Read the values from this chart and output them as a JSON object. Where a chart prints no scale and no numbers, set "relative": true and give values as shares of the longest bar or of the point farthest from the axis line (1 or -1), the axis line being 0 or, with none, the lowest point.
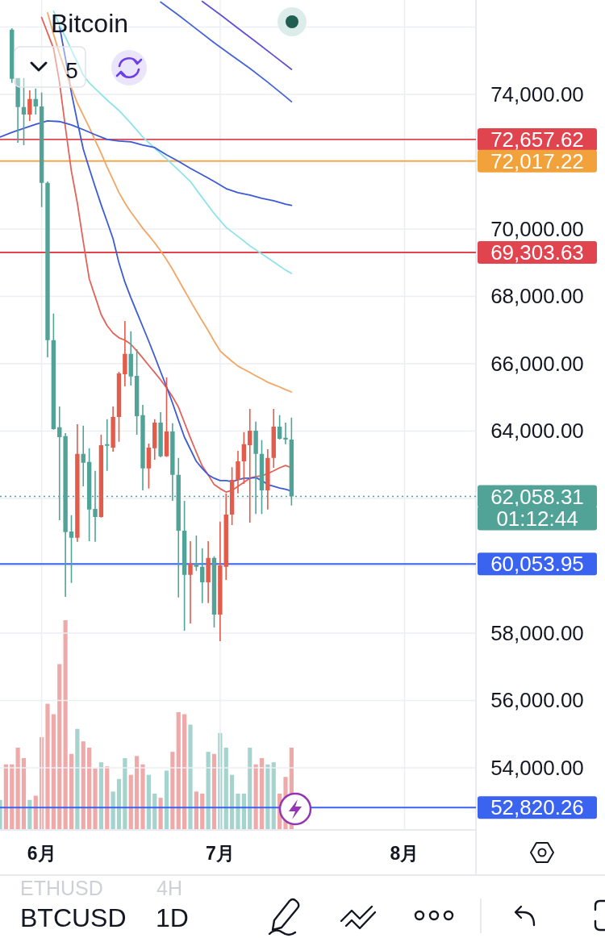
{
  "chart_data": [
    {
      "type": "candlestick",
      "title": "Bitcoin",
      "annotations": [
        "5",
        "ETHUSD",
        "4H",
        "BTCUSD",
        "1D",
        "01:12:44"
      ],
      "x": [
        "--05-27",
        "--05-28",
        "--05-29",
        "--05-30",
        "--05-31",
        "--06-01",
        "--06-02",
        "--06-03",
        "--06-04",
        "--06-05",
        "--06-06",
        "--06-07",
        "--06-08",
        "--06-09",
        "--06-10",
        "--06-11",
        "--06-12",
        "--06-13",
        "--06-14",
        "--06-15",
        "--06-16",
        "--06-17",
        "--06-18",
        "--06-19",
        "--06-20",
        "--06-21",
        "--06-22",
        "--06-23",
        "--06-24",
        "--06-25",
        "--06-26",
        "--06-27",
        "--06-28",
        "--06-29",
        "--06-30",
        "--07-01",
        "--07-02",
        "--07-03",
        "--07-04",
        "--07-05",
        "--07-06",
        "--07-07",
        "--07-08",
        "--07-09",
        "--07-10",
        "--07-11",
        "--07-12",
        "--07-13"
      ],
      "ohlc": [
        [
          75920,
          75960,
          74340,
          74460
        ],
        [
          74480,
          74480,
          72560,
          73620
        ],
        [
          73620,
          74480,
          72490,
          73400
        ],
        [
          73400,
          74120,
          73210,
          73860
        ],
        [
          73860,
          74170,
          73400,
          73640
        ],
        [
          73640,
          74050,
          70650,
          71370
        ],
        [
          71370,
          71410,
          66190,
          66700
        ],
        [
          66700,
          67490,
          64040,
          64060
        ],
        [
          64110,
          64730,
          61350,
          63820
        ],
        [
          63850,
          63940,
          59080,
          61000
        ],
        [
          61020,
          61500,
          59490,
          60830
        ],
        [
          60830,
          64200,
          60710,
          63320
        ],
        [
          63320,
          64160,
          62360,
          63060
        ],
        [
          63080,
          63490,
          60730,
          61670
        ],
        [
          61690,
          62820,
          60710,
          61450
        ],
        [
          61450,
          63890,
          61430,
          63580
        ],
        [
          63610,
          64350,
          62820,
          63560
        ],
        [
          63510,
          64730,
          63390,
          64420
        ],
        [
          64420,
          65760,
          63680,
          65710
        ],
        [
          65690,
          67270,
          65330,
          66290
        ],
        [
          66290,
          66960,
          65350,
          65620
        ],
        [
          65640,
          66430,
          63890,
          64440
        ],
        [
          64470,
          64780,
          62240,
          62890
        ],
        [
          62890,
          63630,
          62290,
          63510
        ],
        [
          63490,
          64350,
          63150,
          64250
        ],
        [
          64250,
          64560,
          63220,
          63250
        ],
        [
          63250,
          65590,
          63230,
          63990
        ],
        [
          63990,
          64230,
          61930,
          62700
        ],
        [
          62700,
          63200,
          59060,
          61040
        ],
        [
          61040,
          61930,
          58070,
          59730
        ],
        [
          59730,
          60730,
          58290,
          60060
        ],
        [
          60060,
          60900,
          59850,
          59970
        ],
        [
          59970,
          60520,
          58890,
          59510
        ],
        [
          59510,
          60730,
          58890,
          60230
        ],
        [
          60230,
          60280,
          58170,
          58550
        ],
        [
          58550,
          61310,
          57760,
          60010
        ],
        [
          59970,
          62150,
          59580,
          61520
        ],
        [
          61520,
          62930,
          61210,
          62550
        ],
        [
          62550,
          63410,
          62150,
          63100
        ],
        [
          63100,
          63970,
          62430,
          63610
        ],
        [
          63580,
          64660,
          61280,
          64010
        ],
        [
          64010,
          64280,
          61540,
          63320
        ],
        [
          63320,
          63730,
          61540,
          62240
        ],
        [
          62240,
          63460,
          61670,
          63200
        ],
        [
          63200,
          64660,
          62910,
          64130
        ],
        [
          64130,
          64470,
          63750,
          63770
        ],
        [
          63800,
          64250,
          63610,
          63750
        ],
        [
          63750,
          64400,
          61790,
          62058.31
        ]
      ],
      "colors": [
        "#52a397",
        "#52a397",
        "#52a397",
        "#e35b4b",
        "#52a397",
        "#52a397",
        "#52a397",
        "#52a397",
        "#52a397",
        "#52a397",
        "#52a397",
        "#e35b4b",
        "#52a397",
        "#52a397",
        "#52a397",
        "#e35b4b",
        "#52a397",
        "#e35b4b",
        "#e35b4b",
        "#e35b4b",
        "#52a397",
        "#52a397",
        "#52a397",
        "#e35b4b",
        "#e35b4b",
        "#52a397",
        "#e35b4b",
        "#52a397",
        "#52a397",
        "#52a397",
        "#e35b4b",
        "#52a397",
        "#52a397",
        "#e35b4b",
        "#52a397",
        "#e35b4b",
        "#e35b4b",
        "#e35b4b",
        "#e35b4b",
        "#e35b4b",
        "#e35b4b",
        "#52a397",
        "#52a397",
        "#e35b4b",
        "#e35b4b",
        "#52a397",
        "#52a397",
        "#52a397"
      ],
      "series": [
        {
          "type": "line",
          "color": "#e3625a",
          "x": [
            "--06-01",
            "--06-02",
            "--06-03",
            "--06-04",
            "--06-05",
            "--06-06",
            "--06-07",
            "--06-08",
            "--06-09",
            "--06-10",
            "--06-11",
            "--06-12",
            "--06-13",
            "--06-14",
            "--06-15",
            "--06-16",
            "--06-17",
            "--06-18",
            "--06-19",
            "--06-20",
            "--06-21",
            "--06-22",
            "--06-23",
            "--06-24",
            "--06-25",
            "--06-26",
            "--06-27",
            "--06-28",
            "--06-29",
            "--06-30",
            "--07-01",
            "--07-02",
            "--07-03",
            "--07-04",
            "--07-05",
            "--07-06",
            "--07-07",
            "--07-08",
            "--07-09",
            "--07-10",
            "--07-11",
            "--07-12",
            "--07-13"
          ],
          "values": [
            76280,
            75820,
            75360,
            74360,
            73010,
            71720,
            70770,
            69620,
            68520,
            67990,
            67460,
            67130,
            66910,
            66770,
            66700,
            66580,
            66380,
            66170,
            65950,
            65740,
            65520,
            65280,
            65020,
            64710,
            64250,
            63800,
            63370,
            62960,
            62700,
            62410,
            62290,
            62190,
            62240,
            62360,
            62480,
            62600,
            62650,
            62670,
            62740,
            62820,
            62910,
            62980,
            62910
          ]
        },
        {
          "type": "line",
          "color": "#3e5bd6",
          "x": [
            "--06-04",
            "--06-05",
            "--06-06",
            "--06-07",
            "--06-08",
            "--06-09",
            "--06-10",
            "--06-11",
            "--06-12",
            "--06-13",
            "--06-14",
            "--06-15",
            "--06-16",
            "--06-17",
            "--06-18",
            "--06-19",
            "--06-20",
            "--06-21",
            "--06-22",
            "--06-23",
            "--06-24",
            "--06-25",
            "--06-26",
            "--06-27",
            "--06-28",
            "--06-29",
            "--06-30",
            "--07-01",
            "--07-02",
            "--07-03",
            "--07-04",
            "--07-05",
            "--07-06",
            "--07-07",
            "--07-08",
            "--07-09",
            "--07-10",
            "--07-11",
            "--07-12",
            "--07-13"
          ],
          "values": [
            76020,
            75070,
            74050,
            73190,
            72370,
            71800,
            71250,
            70720,
            70220,
            69710,
            68990,
            68420,
            67960,
            67530,
            67100,
            66670,
            66220,
            65760,
            65310,
            64830,
            64320,
            63820,
            63460,
            63100,
            62890,
            62700,
            62600,
            62530,
            62530,
            62500,
            62550,
            62600,
            62600,
            62620,
            62530,
            62410,
            62360,
            62310,
            62270,
            62220
          ]
        },
        {
          "type": "line",
          "color": "#f2a665",
          "x": [
            "--06-02",
            "--06-03",
            "--06-04",
            "--06-05",
            "--06-06",
            "--06-07",
            "--06-08",
            "--06-09",
            "--06-10",
            "--06-11",
            "--06-12",
            "--06-13",
            "--06-14",
            "--06-15",
            "--06-16",
            "--06-17",
            "--06-18",
            "--06-19",
            "--06-20",
            "--06-21",
            "--06-22",
            "--06-23",
            "--06-24",
            "--06-25",
            "--06-26",
            "--06-27",
            "--06-28",
            "--06-29",
            "--06-30",
            "--07-01",
            "--07-02",
            "--07-03",
            "--07-04",
            "--07-05",
            "--07-06",
            "--07-07",
            "--07-08",
            "--07-09",
            "--07-10",
            "--07-11",
            "--07-12",
            "--07-13"
          ],
          "values": [
            76420,
            75780,
            75200,
            74690,
            74190,
            73740,
            73380,
            73020,
            72630,
            72250,
            71840,
            71460,
            71080,
            70770,
            70500,
            70260,
            70020,
            69810,
            69590,
            69350,
            69090,
            68800,
            68490,
            68180,
            67870,
            67560,
            67270,
            66980,
            66670,
            66380,
            66220,
            66070,
            65930,
            65830,
            65740,
            65640,
            65550,
            65450,
            65380,
            65310,
            65230,
            65160
          ]
        },
        {
          "type": "line",
          "color": "#8de3ea",
          "x": [
            "--06-03",
            "--06-04",
            "--06-05",
            "--06-06",
            "--06-07",
            "--06-08",
            "--06-09",
            "--06-10",
            "--06-12",
            "--06-14",
            "--06-16",
            "--06-18",
            "--06-20",
            "--06-22",
            "--06-24",
            "--06-26",
            "--06-28",
            "--06-30",
            "--07-02",
            "--07-04",
            "--07-06",
            "--07-08",
            "--07-10",
            "--07-12",
            "--07-13"
          ],
          "values": [
            76470,
            76060,
            75700,
            75320,
            74950,
            74570,
            74340,
            74170,
            73830,
            73520,
            73140,
            72730,
            72400,
            72080,
            71750,
            71410,
            70930,
            70460,
            70050,
            69780,
            69500,
            69260,
            69020,
            68780,
            68680
          ]
        },
        {
          "type": "line",
          "color": "#3c5ad4",
          "x": [
            "--05-25",
            "--05-27",
            "--05-29",
            "--05-31",
            "--06-02",
            "--06-04",
            "--06-06",
            "--06-08",
            "--06-10",
            "--06-12",
            "--06-14",
            "--06-16",
            "--06-18",
            "--06-20",
            "--06-22",
            "--06-24",
            "--06-26",
            "--06-28",
            "--06-30",
            "--07-02",
            "--07-04",
            "--07-06",
            "--07-08",
            "--07-10",
            "--07-12",
            "--07-13"
          ],
          "values": [
            72730,
            72870,
            72990,
            73110,
            73210,
            73190,
            73090,
            72950,
            72800,
            72660,
            72610,
            72590,
            72490,
            72420,
            72200,
            72010,
            71800,
            71610,
            71410,
            71200,
            71080,
            71010,
            70910,
            70840,
            70740,
            70700
          ]
        },
        {
          "type": "line",
          "color": "#6150d6",
          "x": [
            "--06-28",
            "--07-01",
            "--07-04",
            "--07-07",
            "--07-10",
            "--07-13"
          ],
          "values": [
            76760,
            76370,
            75960,
            75560,
            75150,
            74740
          ]
        },
        {
          "type": "line",
          "color": "#4463dc",
          "x": [
            "--06-21",
            "--06-24",
            "--06-27",
            "--06-30",
            "--07-03",
            "--07-06",
            "--07-09",
            "--07-12",
            "--07-13"
          ],
          "values": [
            76740,
            76350,
            75940,
            75530,
            75150,
            74770,
            74360,
            73930,
            73780
          ]
        }
      ],
      "xlim": [
        "--05-25",
        "--08-13"
      ],
      "xticks": [
        {
          "value": "--06-01",
          "label": "6月"
        },
        {
          "value": "--07-01",
          "label": "7月"
        },
        {
          "value": "--08-01",
          "label": "8月"
        }
      ],
      "ylim": [
        52180,
        76800
      ],
      "yticks": [
        {
          "value": 54000,
          "label": "54,000.00"
        },
        {
          "value": 56000,
          "label": "56,000.00"
        },
        {
          "value": 58000,
          "label": "58,000.00"
        },
        {
          "value": 60000,
          "label": null
        },
        {
          "value": 62000,
          "label": null
        },
        {
          "value": 64000,
          "label": "64,000.00"
        },
        {
          "value": 66000,
          "label": "66,000.00"
        },
        {
          "value": 68000,
          "label": "68,000.00"
        },
        {
          "value": 70000,
          "label": "70,000.00"
        },
        {
          "value": 72000,
          "label": null
        },
        {
          "value": 74000,
          "label": "74,000.00"
        },
        {
          "value": 76000,
          "label": null
        }
      ],
      "grid": true,
      "ref_lines": [
        {
          "axis": "y",
          "value": 72657.62,
          "label": "72,657.62",
          "color": "#df444f"
        },
        {
          "axis": "y",
          "value": 72017.22,
          "label": "72,017.22",
          "color": "#f2a23a"
        },
        {
          "axis": "y",
          "value": 69303.63,
          "label": "69,303.63",
          "color": "#df444f"
        },
        {
          "axis": "y",
          "value": 62058.31,
          "label": "62,058.31",
          "color": "#52a397",
          "line_style": "dotted"
        },
        {
          "axis": "y",
          "value": 60053.95,
          "label": "60,053.95",
          "color": "#3a63f0"
        },
        {
          "axis": "y",
          "value": 52820.26,
          "label": "52,820.26",
          "color": "#3a63f0"
        }
      ]
    },
    {
      "type": "bar",
      "relative": true,
      "x": [
        "--05-25",
        "--05-26",
        "--05-27",
        "--05-28",
        "--05-29",
        "--05-30",
        "--05-31",
        "--06-01",
        "--06-02",
        "--06-03",
        "--06-04",
        "--06-05",
        "--06-06",
        "--06-07",
        "--06-08",
        "--06-09",
        "--06-10",
        "--06-11",
        "--06-12",
        "--06-13",
        "--06-14",
        "--06-15",
        "--06-16",
        "--06-17",
        "--06-18",
        "--06-19",
        "--06-20",
        "--06-21",
        "--06-22",
        "--06-23",
        "--06-24",
        "--06-25",
        "--06-26",
        "--06-27",
        "--06-28",
        "--06-29",
        "--06-30",
        "--07-01",
        "--07-02",
        "--07-03",
        "--07-04",
        "--07-05",
        "--07-06",
        "--07-07",
        "--07-08",
        "--07-09",
        "--07-10",
        "--07-11",
        "--07-12",
        "--07-13"
      ],
      "xlim": [
        "--05-25",
        "--08-13"
      ],
      "values": [
        0.14,
        0.31,
        0.31,
        0.39,
        0.34,
        0.14,
        0.16,
        0.44,
        0.6,
        0.55,
        0.79,
        1,
        0.36,
        0.48,
        0.42,
        0.39,
        0.29,
        0.32,
        0.3,
        0.18,
        0.24,
        0.34,
        0.26,
        0.35,
        0.31,
        0.26,
        0.17,
        0.15,
        0.28,
        0.37,
        0.56,
        0.55,
        0.5,
        0.18,
        0.17,
        0.37,
        0.36,
        0.46,
        0.39,
        0.26,
        0.17,
        0.17,
        0.39,
        0.31,
        0.34,
        0.31,
        0.32,
        0.17,
        0.25,
        0.39
      ],
      "colors": [
        "#a5d4cf",
        "#f0a9a9",
        "#f0a9a9",
        "#f0a9a9",
        "#f0a9a9",
        "#a5d4cf",
        "#f0a9a9",
        "#f0a9a9",
        "#f0a9a9",
        "#f0a9a9",
        "#f0a9a9",
        "#f0a9a9",
        "#f0a9a9",
        "#a5d4cf",
        "#f0a9a9",
        "#f0a9a9",
        "#f0a9a9",
        "#a5d4cf",
        "#f0a9a9",
        "#a5d4cf",
        "#a5d4cf",
        "#a5d4cf",
        "#f0a9a9",
        "#f0a9a9",
        "#f0a9a9",
        "#a5d4cf",
        "#a5d4cf",
        "#f0a9a9",
        "#a5d4cf",
        "#f0a9a9",
        "#f0a9a9",
        "#f0a9a9",
        "#a5d4cf",
        "#f0a9a9",
        "#f0a9a9",
        "#a5d4cf",
        "#f0a9a9",
        "#a5d4cf",
        "#a5d4cf",
        "#a5d4cf",
        "#a5d4cf",
        "#a5d4cf",
        "#a5d4cf",
        "#f0a9a9",
        "#f0a9a9",
        "#a5d4cf",
        "#a5d4cf",
        "#f0a9a9",
        "#f0a9a9",
        "#f0a9a9"
      ]
    }
  ]
}
